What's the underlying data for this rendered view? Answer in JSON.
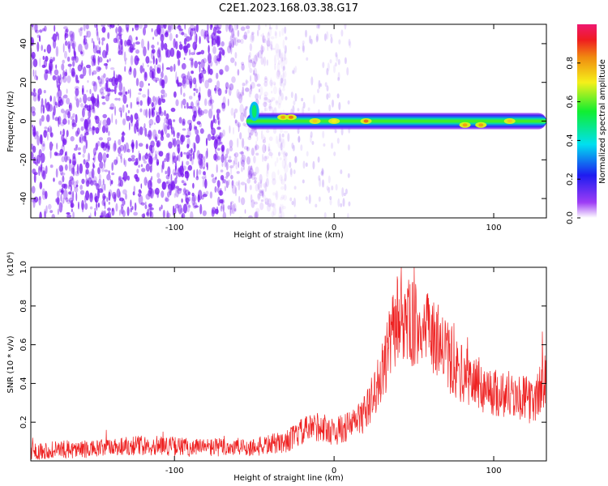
{
  "title": "C2E1.2023.168.03.38.G17",
  "colors": {
    "snr_line": "#ee2222",
    "speckle": "#7a1cf0",
    "axis": "#000000"
  },
  "chart_data": [
    {
      "type": "heatmap",
      "xlabel": "Height of straight line (km)",
      "ylabel": "Frequency (Hz)",
      "xlim": [
        -190,
        133
      ],
      "ylim": [
        -50,
        50
      ],
      "xticks": [
        -100,
        0,
        100
      ],
      "yticks": [
        -40,
        -20,
        0,
        20,
        40
      ],
      "grid": false,
      "colorbar": {
        "label": "Normalized spectral amplitude",
        "range": [
          0,
          1
        ],
        "ticks": [
          "0.0",
          "0.2",
          "0.4",
          "0.6",
          "0.8"
        ],
        "colormap": "rainbow (purple → blue → cyan → green → yellow → red → magenta)"
      },
      "features": {
        "noise_region_x": [
          -190,
          -35
        ],
        "signal_band_frequency_hz": 0,
        "signal_start_x": -55,
        "high_amplitude_points": [
          {
            "x": -32,
            "y": 2,
            "amp": 0.8
          },
          {
            "x": -27,
            "y": 2,
            "amp": 0.85
          },
          {
            "x": -12,
            "y": 0,
            "amp": 0.75
          },
          {
            "x": 0,
            "y": 0,
            "amp": 0.7
          },
          {
            "x": 20,
            "y": 0,
            "amp": 0.85
          },
          {
            "x": 82,
            "y": -2,
            "amp": 0.8
          },
          {
            "x": 92,
            "y": -2,
            "amp": 0.8
          },
          {
            "x": 110,
            "y": 0,
            "amp": 0.75
          }
        ]
      }
    },
    {
      "type": "line",
      "xlabel": "Height of straight line (km)",
      "ylabel": "SNR (10 * v/v)",
      "y_multiplier": "(x10⁴)",
      "xlim": [
        -190,
        133
      ],
      "ylim": [
        0,
        1.0
      ],
      "xticks": [
        -100,
        0,
        100
      ],
      "yticks": [
        "0.2",
        "0.4",
        "0.6",
        "0.8",
        "1.0"
      ],
      "grid": false,
      "series": [
        {
          "x": [
            -190,
            -170,
            -150,
            -130,
            -110,
            -90,
            -70,
            -50,
            -30,
            -20,
            -10,
            0,
            10,
            20,
            25,
            30,
            35,
            40,
            45,
            50,
            55,
            60,
            65,
            70,
            75,
            80,
            90,
            100,
            110,
            120,
            125,
            130,
            133
          ],
          "values": [
            0.05,
            0.06,
            0.06,
            0.08,
            0.08,
            0.07,
            0.07,
            0.07,
            0.1,
            0.15,
            0.18,
            0.15,
            0.18,
            0.25,
            0.35,
            0.45,
            0.6,
            0.75,
            0.72,
            0.7,
            0.68,
            0.65,
            0.62,
            0.55,
            0.48,
            0.45,
            0.4,
            0.35,
            0.35,
            0.32,
            0.3,
            0.38,
            0.45
          ]
        }
      ]
    }
  ]
}
